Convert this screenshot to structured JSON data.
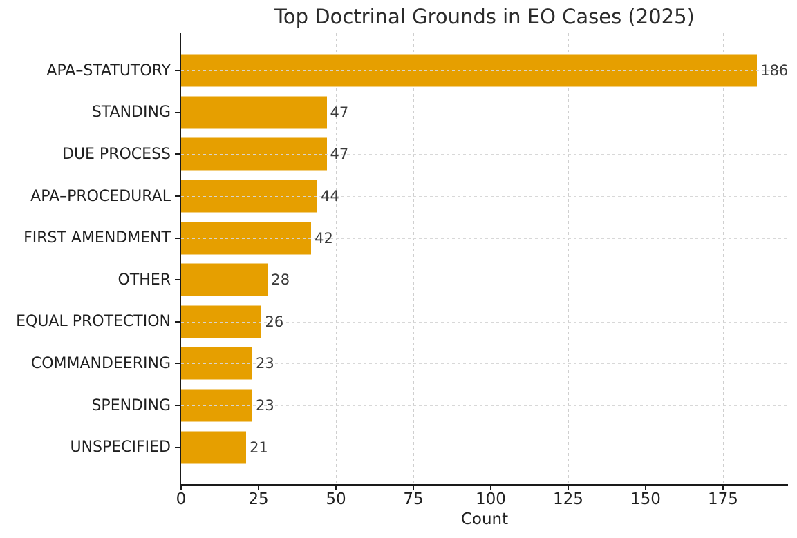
{
  "title": "Top Doctrinal Grounds in EO Cases (2025)",
  "chart_data": {
    "type": "bar",
    "orientation": "horizontal",
    "title": "Top Doctrinal Grounds in EO Cases (2025)",
    "categories": [
      "APA–STATUTORY",
      "STANDING",
      "DUE PROCESS",
      "APA–PROCEDURAL",
      "FIRST AMENDMENT",
      "OTHER",
      "EQUAL PROTECTION",
      "COMMANDEERING",
      "SPENDING",
      "UNSPECIFIED"
    ],
    "values": [
      186,
      47,
      47,
      44,
      42,
      28,
      26,
      23,
      23,
      21
    ],
    "value_labels": [
      "186",
      "47",
      "47",
      "44",
      "42",
      "28",
      "26",
      "23",
      "23",
      "21"
    ],
    "xlabel": "Count",
    "ylabel": "",
    "xlim": [
      0,
      196
    ],
    "xticks": [
      0,
      25,
      50,
      75,
      100,
      125,
      150,
      175
    ],
    "grid": true,
    "grid_style": "dashed",
    "legend": "none",
    "bar_color": "#E69F00",
    "grid_color": "#cfcfcf",
    "axis_color": "#1a1a1a",
    "text_color": "#1f1f1f",
    "value_label_color": "#3a3a3a",
    "background_color": "#ffffff"
  }
}
